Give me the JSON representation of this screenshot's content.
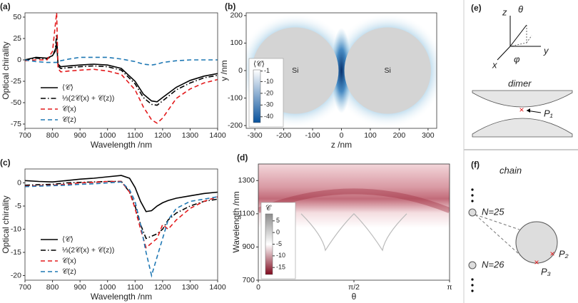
{
  "chart_data": [
    {
      "type": "line",
      "panel_label": "(a)",
      "xlabel": "Wavelength /nm",
      "ylabel": "Optical chirality",
      "x": [
        700,
        740,
        780,
        800,
        810,
        815,
        820,
        830,
        860,
        900,
        950,
        1000,
        1050,
        1100,
        1130,
        1160,
        1180,
        1200,
        1250,
        1300,
        1350,
        1400
      ],
      "xlim": [
        700,
        1400
      ],
      "xticks": [
        700,
        800,
        900,
        1000,
        1100,
        1200,
        1300,
        1400
      ],
      "ylim": [
        -80,
        55
      ],
      "yticks": [
        -75,
        -50,
        -25,
        0,
        25,
        50
      ],
      "legend": "lower left",
      "series": [
        {
          "name": "⟨𝒞⟩",
          "color": "#000000",
          "linestyle": "solid",
          "values": [
            0,
            3,
            2,
            5,
            10,
            20,
            -5,
            -8,
            -7,
            -6,
            -5,
            -6,
            -10,
            -25,
            -40,
            -48,
            -49,
            -44,
            -32,
            -24,
            -19,
            -16
          ]
        },
        {
          "name": "⅓(2𝒞(x) + 𝒞(z))",
          "color": "#000000",
          "linestyle": "dashdot",
          "values": [
            0,
            2,
            1,
            5,
            12,
            30,
            -7,
            -10,
            -9,
            -8,
            -7,
            -8,
            -12,
            -28,
            -44,
            -52,
            -53,
            -48,
            -35,
            -27,
            -21,
            -18
          ]
        },
        {
          "name": "𝒞(x)",
          "color": "#e31a1c",
          "linestyle": "dashed",
          "values": [
            -1,
            0,
            0,
            10,
            40,
            55,
            -10,
            -14,
            -13,
            -12,
            -11,
            -13,
            -17,
            -35,
            -55,
            -70,
            -74,
            -68,
            -45,
            -34,
            -27,
            -23
          ]
        },
        {
          "name": "𝒞(z)",
          "color": "#1f78b4",
          "linestyle": "dashed",
          "values": [
            0,
            -2,
            -3,
            -3,
            -3,
            -3,
            -2,
            -1,
            1,
            3,
            3,
            3,
            1,
            -2,
            -5,
            -6,
            -5,
            -3,
            -1,
            0,
            0,
            0
          ]
        }
      ]
    },
    {
      "type": "heatmap",
      "panel_label": "(b)",
      "xlabel": "z /nm",
      "ylabel": "y /nm",
      "xlim": [
        -330,
        330
      ],
      "xticks": [
        -300,
        -200,
        -100,
        0,
        100,
        200,
        300
      ],
      "ylim": [
        -210,
        210
      ],
      "yticks": [
        -200,
        -100,
        0,
        100,
        200
      ],
      "labels": [
        "Si",
        "Si"
      ],
      "colorbar_title": "⟨𝒞⟩",
      "colorbar_lim": [
        -45,
        0
      ],
      "colorbar_ticks": [
        -1,
        -10,
        -20,
        -30,
        -40
      ],
      "colors": [
        "#ffffff",
        "#08519c"
      ]
    },
    {
      "type": "line",
      "panel_label": "(c)",
      "xlabel": "Wavelength /nm",
      "ylabel": "Optical chirality",
      "x": [
        700,
        750,
        800,
        850,
        900,
        950,
        1000,
        1050,
        1080,
        1100,
        1120,
        1140,
        1160,
        1180,
        1200,
        1220,
        1250,
        1300,
        1350,
        1400
      ],
      "xlim": [
        700,
        1400
      ],
      "xticks": [
        700,
        800,
        900,
        1000,
        1100,
        1200,
        1300,
        1400
      ],
      "ylim": [
        -21,
        3
      ],
      "yticks": [
        -20,
        -15,
        -10,
        -5,
        0
      ],
      "legend": "lower left",
      "series": [
        {
          "name": "⟨𝒞⟩",
          "color": "#000000",
          "linestyle": "solid",
          "values": [
            0.5,
            0.3,
            0.2,
            0.5,
            0.8,
            1,
            1.3,
            1.6,
            1,
            -1,
            -4,
            -6.2,
            -6,
            -5,
            -4.3,
            -3.8,
            -3.3,
            -2.8,
            -2.3,
            -2
          ]
        },
        {
          "name": "⅓(2𝒞(x) + 𝒞(z))",
          "color": "#000000",
          "linestyle": "dashdot",
          "values": [
            -0.5,
            -0.4,
            -0.3,
            0,
            0.1,
            0.2,
            0.3,
            0.3,
            -2,
            -5,
            -9,
            -12,
            -11.5,
            -11,
            -10,
            -8,
            -6.5,
            -5,
            -4,
            -3.5
          ]
        },
        {
          "name": "𝒞(x)",
          "color": "#e31a1c",
          "linestyle": "dashed",
          "values": [
            -0.7,
            -0.6,
            -0.5,
            -0.3,
            0,
            0.1,
            0.3,
            0.3,
            -2,
            -5.5,
            -10,
            -14,
            -13,
            -12,
            -9,
            -10,
            -8,
            -5.5,
            -4,
            -3
          ]
        },
        {
          "name": "𝒞(z)",
          "color": "#1f78b4",
          "linestyle": "dashed",
          "values": [
            -0.8,
            -0.7,
            -0.6,
            -0.5,
            -0.3,
            -0.2,
            0,
            0.2,
            -1.5,
            -4,
            -9,
            -15,
            -20,
            -16,
            -12,
            -8,
            -5.5,
            -4,
            -3.5,
            -3
          ]
        }
      ]
    },
    {
      "type": "heatmap",
      "panel_label": "(d)",
      "xlabel": "θ",
      "ylabel": "Wavelength /nm",
      "xlim": [
        0,
        3.1416
      ],
      "xticks": [
        0,
        {
          "value": 1.5708,
          "label": "π/2"
        },
        {
          "value": 3.1416,
          "label": "π"
        }
      ],
      "ylim": [
        700,
        1400
      ],
      "yticks": [
        700,
        900,
        1100,
        1300
      ],
      "colorbar_title": "𝒞",
      "colorbar_lim": [
        -18,
        8
      ],
      "colorbar_ticks": [
        5,
        0,
        -5,
        -10,
        -15
      ],
      "colors": [
        "#8c8c8c",
        "#ffffff",
        "#7f0a1e"
      ]
    }
  ],
  "diagrams": {
    "e": {
      "label": "(e)",
      "axis_z": "z",
      "axis_theta": "θ",
      "axis_x": "x",
      "axis_y": "y",
      "axis_phi": "φ",
      "title": "dimer",
      "point": "P₁"
    },
    "f": {
      "label": "(f)",
      "title": "chain",
      "n1": "N=25",
      "n2": "N=26",
      "p2": "P₂",
      "p3": "P₃"
    }
  }
}
